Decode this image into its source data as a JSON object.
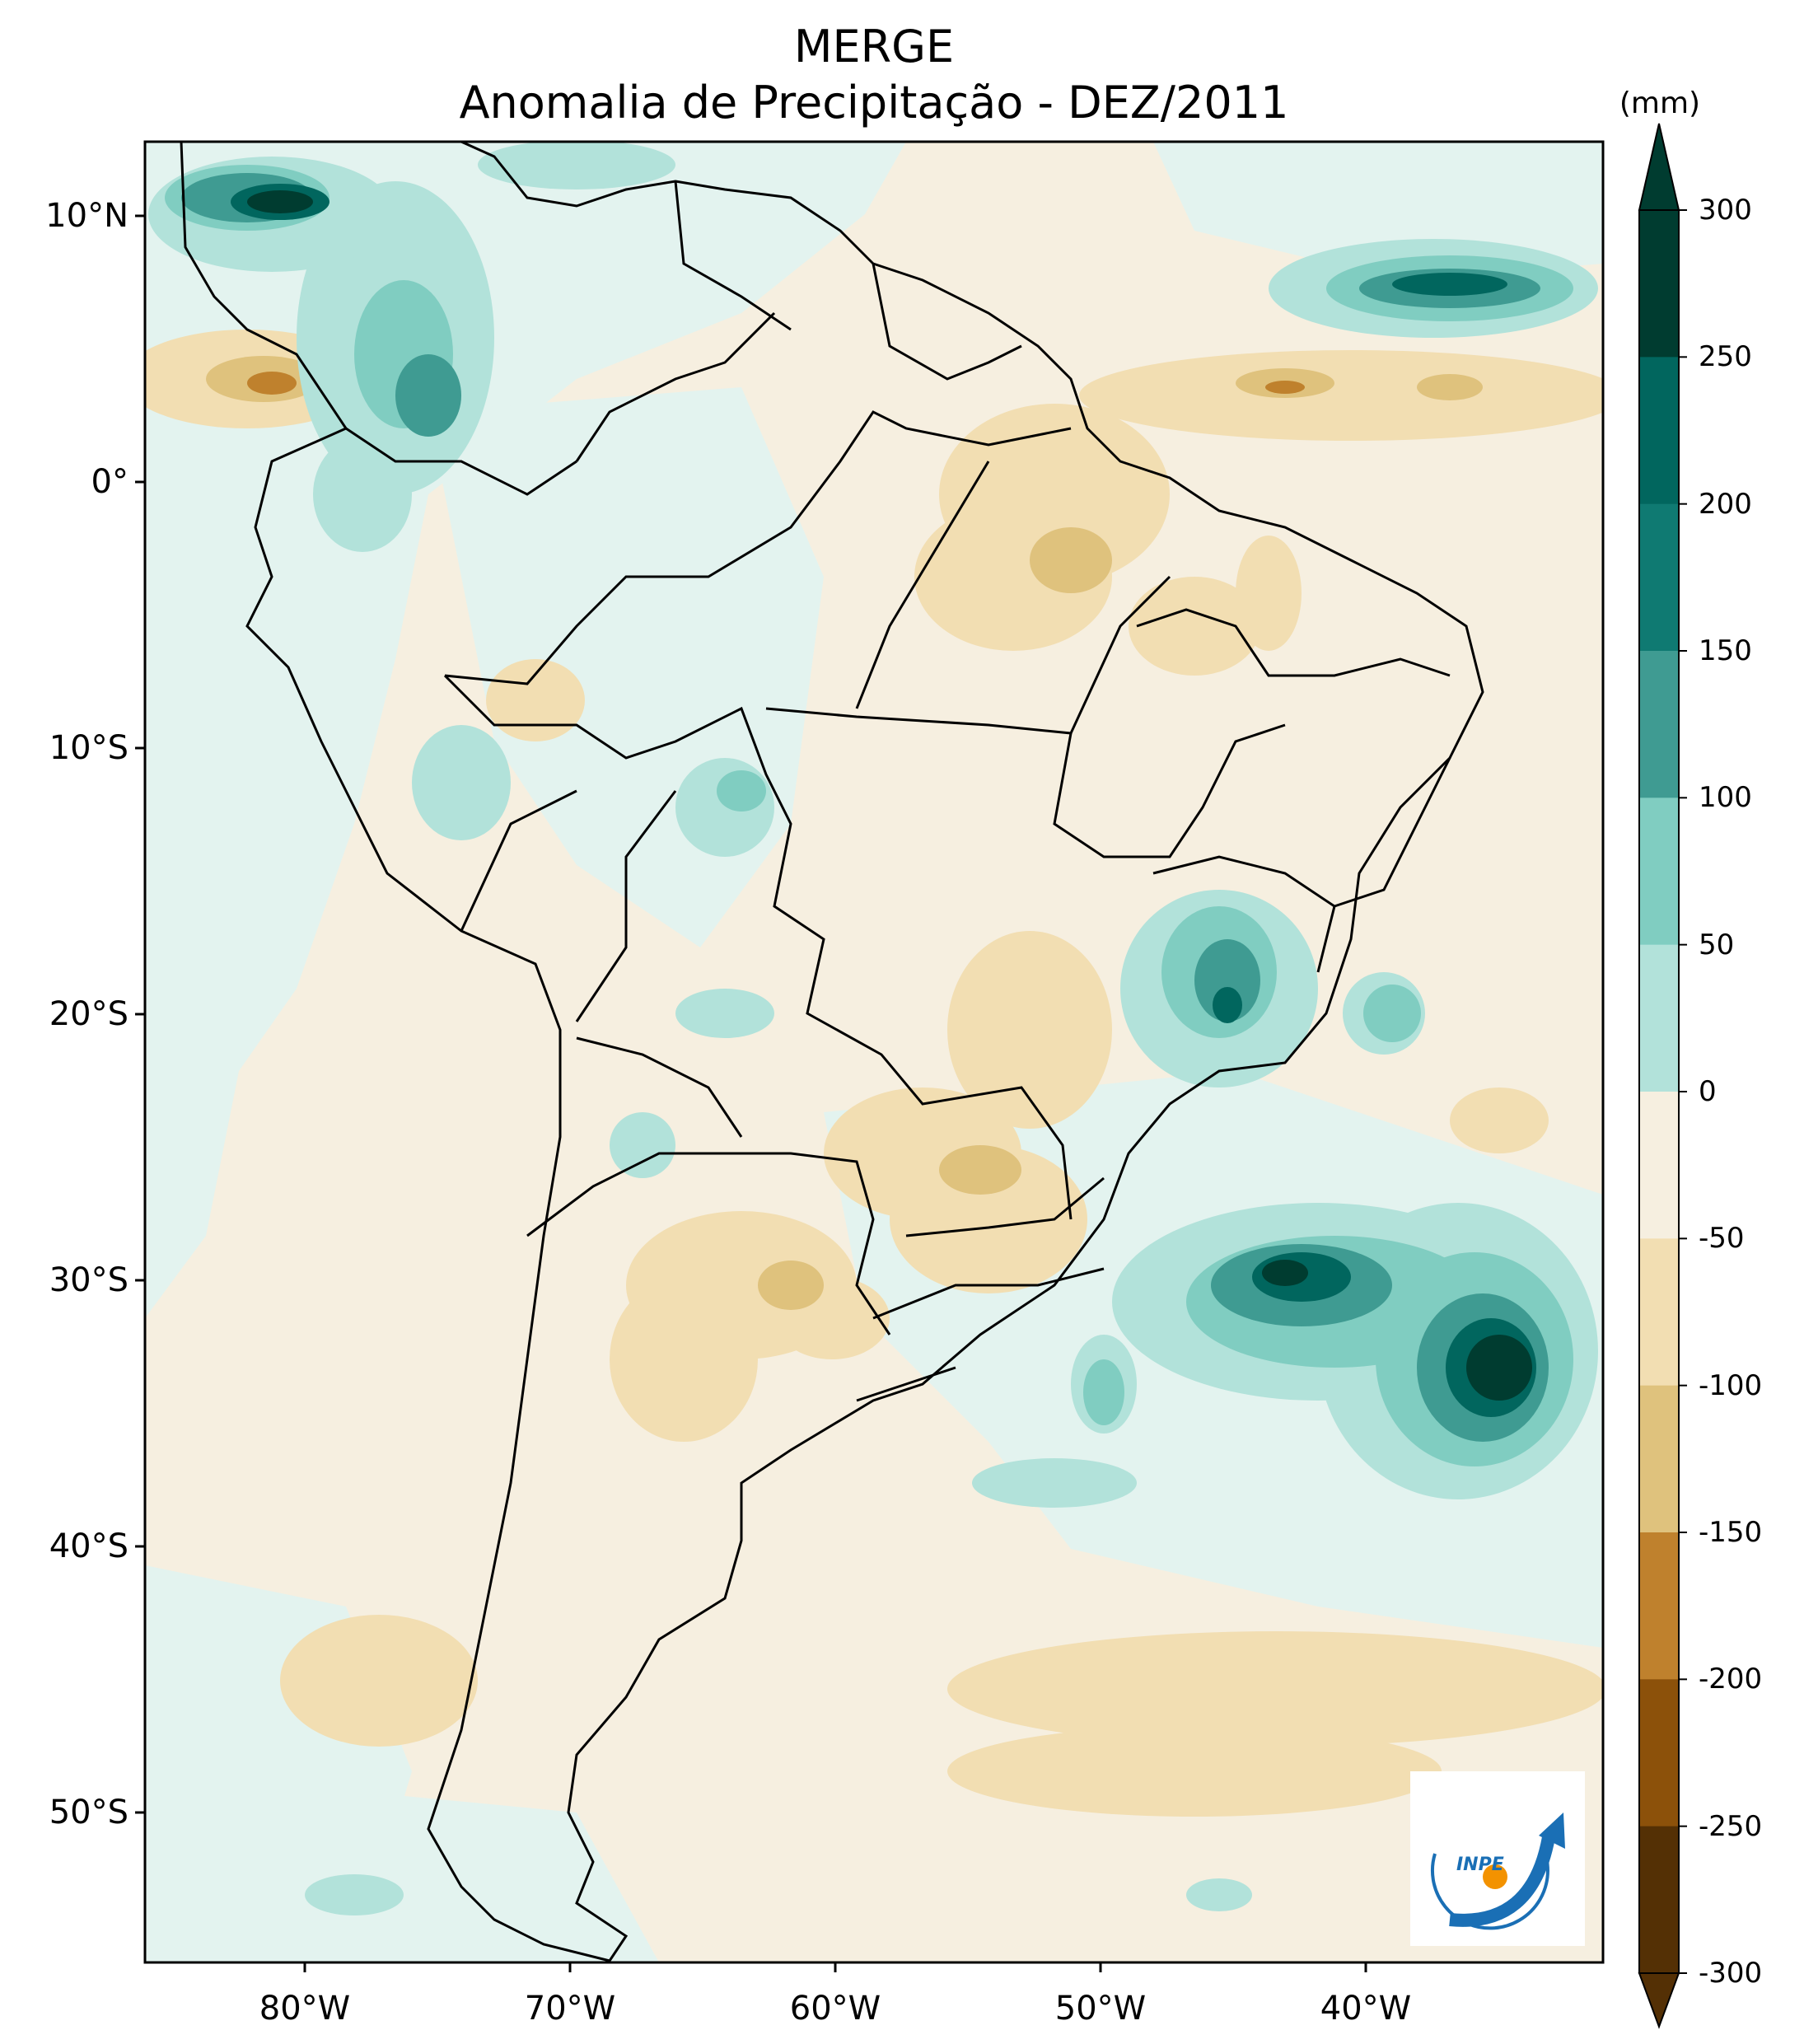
{
  "title_line1": "MERGE",
  "title_line2": "Anomalia de Precipitação - DEZ/2011",
  "colorbar": {
    "unit": "(mm)",
    "labels": [
      "300",
      "250",
      "200",
      "150",
      "100",
      "50",
      "0",
      "-50",
      "-100",
      "-150",
      "-200",
      "-250",
      "-300"
    ],
    "colors_top_to_bottom": [
      "#003c30",
      "#01665e",
      "#0f7a72",
      "#3f9b92",
      "#80cdc1",
      "#b2e2da",
      "#e3f3ef",
      "#f6efe0",
      "#f2deb2",
      "#dfc27d",
      "#bf812d",
      "#8c510a",
      "#543005"
    ]
  },
  "axes": {
    "lat_ticks": [
      "10°N",
      "0°",
      "10°S",
      "20°S",
      "30°S",
      "40°S",
      "50°S"
    ],
    "lon_ticks": [
      "80°W",
      "70°W",
      "60°W",
      "50°W",
      "40°W"
    ]
  },
  "logo": {
    "text": "INPE",
    "colors": {
      "blue": "#1a6fb5",
      "orange": "#f39200"
    }
  }
}
